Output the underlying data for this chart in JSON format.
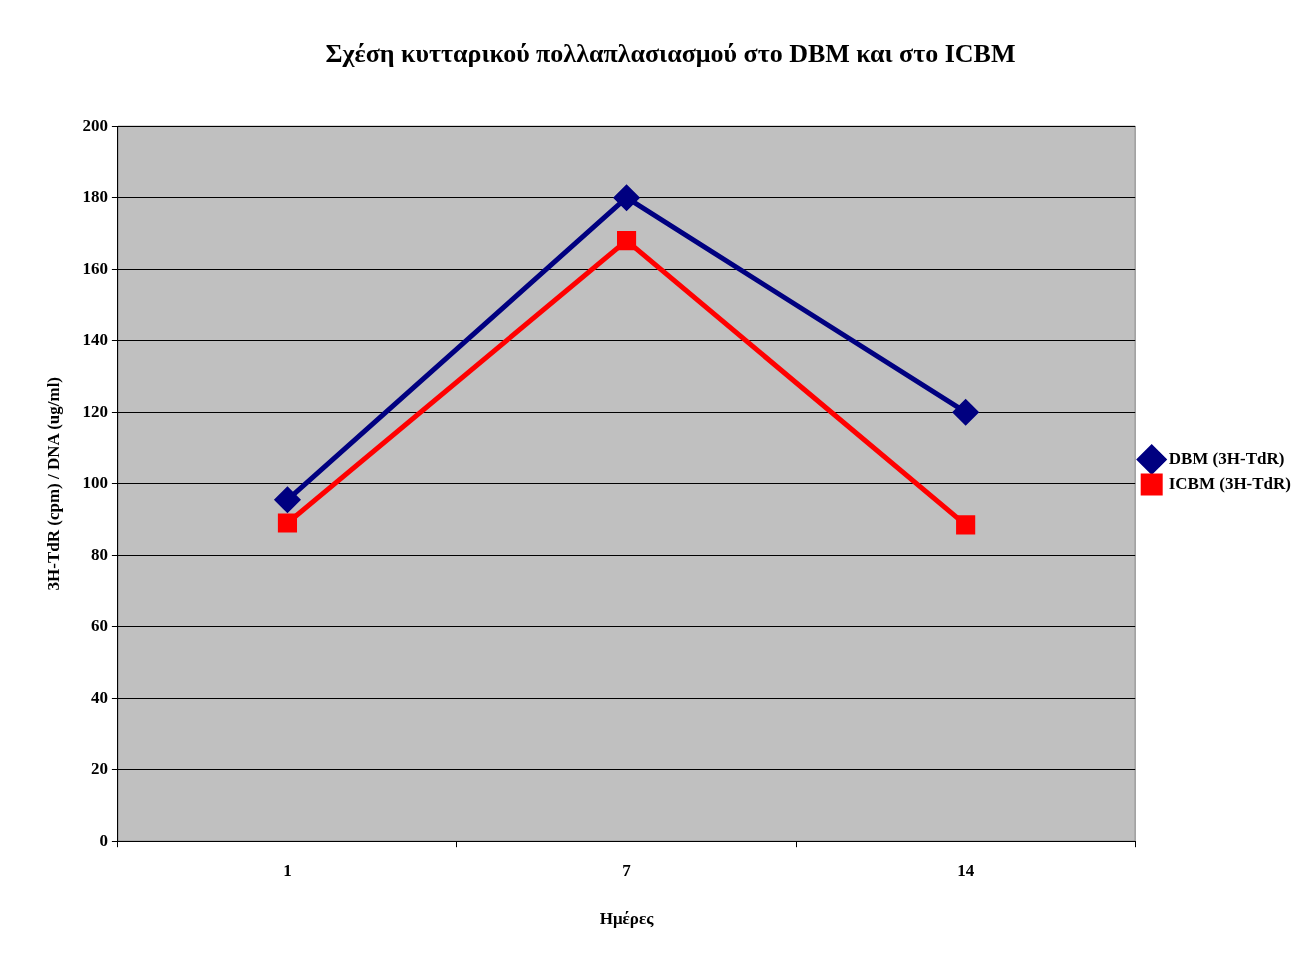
{
  "chart_data": {
    "type": "line",
    "title": "Σχέση κυτταρικού πολλαπλασιασμού στο DBM και στο ICBM",
    "xlabel": "Ημέρες",
    "ylabel": "3H-TdR (cpm) / DNA (ug/ml)",
    "categories": [
      "1",
      "7",
      "14"
    ],
    "series": [
      {
        "name": "DBM (3H-TdR)",
        "color": "#000080",
        "marker": "diamond",
        "values": [
          95.5,
          180,
          120
        ]
      },
      {
        "name": "ICBM (3H-TdR)",
        "color": "#ff0000",
        "marker": "square",
        "values": [
          89,
          168,
          88.5
        ]
      }
    ],
    "ylim": [
      0,
      200
    ],
    "yticks": [
      0,
      20,
      40,
      60,
      80,
      100,
      120,
      140,
      160,
      180,
      200
    ],
    "grid": "y",
    "legend": "right",
    "line_style": "solid"
  }
}
